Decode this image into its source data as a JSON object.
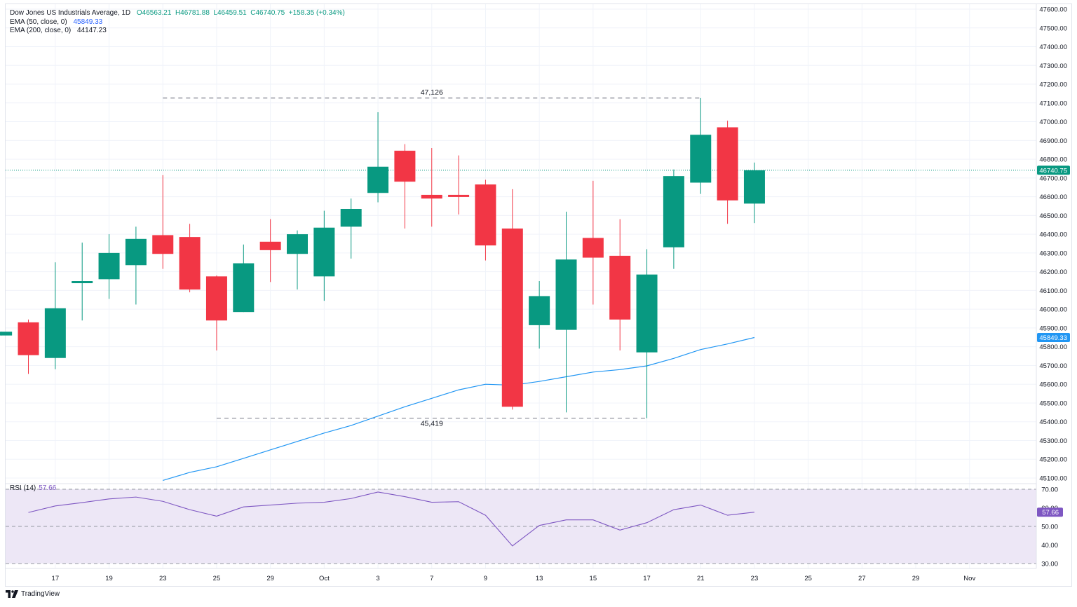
{
  "legend": {
    "symbol": "Dow Jones US Industrials Average, 1D",
    "ohlc": "O46563.21  H46781.88  L46459.51  C46740.75  +158.35 (+0.34%)",
    "ema50_label": "EMA (50, close, 0)",
    "ema50_value": "45849.33",
    "ema200_label": "EMA (200, close, 0)",
    "ema200_value": "44147.23"
  },
  "rsi_legend": {
    "label": "RSI (14)",
    "value": "57.66"
  },
  "branding": "TradingView",
  "colors": {
    "up": "#089981",
    "down": "#f23645",
    "ema50": "#2196f3",
    "rsi": "#7e57c2",
    "rsi_band": "#ede7f6",
    "grid": "#f0f3fa",
    "axis_text": "#131722"
  },
  "chart_data": [
    {
      "type": "candlestick",
      "y_axis_position": "right",
      "ylim": [
        45070,
        47625
      ],
      "y_ticks": [
        "47600.00",
        "47500.00",
        "47400.00",
        "47300.00",
        "47200.00",
        "47100.00",
        "47000.00",
        "46900.00",
        "46800.00",
        "46700.00",
        "46600.00",
        "46500.00",
        "46400.00",
        "46300.00",
        "46200.00",
        "46100.00",
        "46000.00",
        "45900.00",
        "45800.00",
        "45700.00",
        "45600.00",
        "45500.00",
        "45400.00",
        "45300.00",
        "45200.00",
        "45100.00"
      ],
      "x_ticks": [
        {
          "label": "17",
          "index": 1
        },
        {
          "label": "19",
          "index": 3
        },
        {
          "label": "23",
          "index": 5
        },
        {
          "label": "25",
          "index": 7
        },
        {
          "label": "29",
          "index": 9
        },
        {
          "label": "Oct",
          "index": 11
        },
        {
          "label": "3",
          "index": 13
        },
        {
          "label": "7",
          "index": 15
        },
        {
          "label": "9",
          "index": 17
        },
        {
          "label": "13",
          "index": 19
        },
        {
          "label": "15",
          "index": 21
        },
        {
          "label": "17",
          "index": 23
        },
        {
          "label": "21",
          "index": 25
        },
        {
          "label": "23",
          "index": 27
        },
        {
          "label": "25",
          "index": 29
        },
        {
          "label": "27",
          "index": 31
        },
        {
          "label": "29",
          "index": 33
        },
        {
          "label": "Nov",
          "index": 35
        }
      ],
      "candles": [
        {
          "i": -1,
          "o": 45860,
          "h": 45880,
          "l": 45860,
          "c": 45880
        },
        {
          "i": 0,
          "o": 45930,
          "h": 45945,
          "l": 45655,
          "c": 45755
        },
        {
          "i": 1,
          "o": 45740,
          "h": 46250,
          "l": 45680,
          "c": 46005
        },
        {
          "i": 2,
          "o": 46140,
          "h": 46355,
          "l": 45940,
          "c": 46150
        },
        {
          "i": 3,
          "o": 46160,
          "h": 46400,
          "l": 46055,
          "c": 46300
        },
        {
          "i": 4,
          "o": 46235,
          "h": 46440,
          "l": 46025,
          "c": 46375
        },
        {
          "i": 5,
          "o": 46395,
          "h": 46715,
          "l": 46215,
          "c": 46295
        },
        {
          "i": 6,
          "o": 46385,
          "h": 46455,
          "l": 46090,
          "c": 46105
        },
        {
          "i": 7,
          "o": 46175,
          "h": 46180,
          "l": 45780,
          "c": 45940
        },
        {
          "i": 8,
          "o": 45985,
          "h": 46345,
          "l": 45985,
          "c": 46245
        },
        {
          "i": 9,
          "o": 46360,
          "h": 46480,
          "l": 46145,
          "c": 46315
        },
        {
          "i": 10,
          "o": 46295,
          "h": 46420,
          "l": 46105,
          "c": 46400
        },
        {
          "i": 11,
          "o": 46175,
          "h": 46525,
          "l": 46045,
          "c": 46435
        },
        {
          "i": 12,
          "o": 46440,
          "h": 46590,
          "l": 46270,
          "c": 46535
        },
        {
          "i": 13,
          "o": 46620,
          "h": 47050,
          "l": 46570,
          "c": 46760
        },
        {
          "i": 14,
          "o": 46845,
          "h": 46880,
          "l": 46430,
          "c": 46680
        },
        {
          "i": 15,
          "o": 46610,
          "h": 46860,
          "l": 46440,
          "c": 46590
        },
        {
          "i": 16,
          "o": 46610,
          "h": 46820,
          "l": 46505,
          "c": 46605
        },
        {
          "i": 17,
          "o": 46665,
          "h": 46690,
          "l": 46260,
          "c": 46340
        },
        {
          "i": 18,
          "o": 46430,
          "h": 46640,
          "l": 45465,
          "c": 45480
        },
        {
          "i": 19,
          "o": 45915,
          "h": 46150,
          "l": 45790,
          "c": 46070
        },
        {
          "i": 20,
          "o": 45890,
          "h": 46520,
          "l": 45450,
          "c": 46265
        },
        {
          "i": 21,
          "o": 46380,
          "h": 46685,
          "l": 46025,
          "c": 46275
        },
        {
          "i": 22,
          "o": 46285,
          "h": 46480,
          "l": 45780,
          "c": 45945
        },
        {
          "i": 23,
          "o": 45770,
          "h": 46320,
          "l": 45419,
          "c": 46185
        },
        {
          "i": 24,
          "o": 46330,
          "h": 46745,
          "l": 46215,
          "c": 46710
        },
        {
          "i": 25,
          "o": 46675,
          "h": 47126,
          "l": 46615,
          "c": 46930
        },
        {
          "i": 26,
          "o": 46970,
          "h": 47005,
          "l": 46455,
          "c": 46580
        },
        {
          "i": 27,
          "o": 46563.21,
          "h": 46781.88,
          "l": 46459.51,
          "c": 46740.75
        }
      ],
      "ema50": [
        {
          "i": 5,
          "v": 45087
        },
        {
          "i": 6,
          "v": 45130
        },
        {
          "i": 7,
          "v": 45160
        },
        {
          "i": 8,
          "v": 45205
        },
        {
          "i": 9,
          "v": 45250
        },
        {
          "i": 10,
          "v": 45295
        },
        {
          "i": 11,
          "v": 45340
        },
        {
          "i": 12,
          "v": 45380
        },
        {
          "i": 13,
          "v": 45430
        },
        {
          "i": 14,
          "v": 45480
        },
        {
          "i": 15,
          "v": 45525
        },
        {
          "i": 16,
          "v": 45570
        },
        {
          "i": 17,
          "v": 45600
        },
        {
          "i": 18,
          "v": 45595
        },
        {
          "i": 19,
          "v": 45615
        },
        {
          "i": 20,
          "v": 45640
        },
        {
          "i": 21,
          "v": 45665
        },
        {
          "i": 22,
          "v": 45678
        },
        {
          "i": 23,
          "v": 45698
        },
        {
          "i": 24,
          "v": 45738
        },
        {
          "i": 25,
          "v": 45785
        },
        {
          "i": 26,
          "v": 45815
        },
        {
          "i": 27,
          "v": 45849.33
        }
      ],
      "annotations": [
        {
          "label": "47,126",
          "value": 47126,
          "from_index": 5,
          "to_index": 25,
          "placement": "above"
        },
        {
          "label": "45,419",
          "value": 45419,
          "from_index": 7,
          "to_index": 23,
          "placement": "below"
        }
      ],
      "price_tags": [
        {
          "text": "46740.75",
          "value": 46740.75,
          "color": "#089981"
        },
        {
          "text": "45849.33",
          "value": 45849.33,
          "color": "#2196f3"
        }
      ]
    },
    {
      "type": "line",
      "title": "RSI (14)",
      "ylim": [
        27,
        72
      ],
      "y_ticks": [
        "70.00",
        "60.00",
        "50.00",
        "40.00",
        "30.00"
      ],
      "bands": {
        "upper": 70,
        "middle": 50,
        "lower": 30
      },
      "series": [
        {
          "values": [
            {
              "i": 0,
              "v": 57.5
            },
            {
              "i": 1,
              "v": 61
            },
            {
              "i": 2,
              "v": 62.8
            },
            {
              "i": 3,
              "v": 64.8
            },
            {
              "i": 4,
              "v": 65.8
            },
            {
              "i": 5,
              "v": 63.5
            },
            {
              "i": 6,
              "v": 59
            },
            {
              "i": 7,
              "v": 55.5
            },
            {
              "i": 8,
              "v": 60.5
            },
            {
              "i": 9,
              "v": 61.5
            },
            {
              "i": 10,
              "v": 62.5
            },
            {
              "i": 11,
              "v": 63
            },
            {
              "i": 12,
              "v": 65
            },
            {
              "i": 13,
              "v": 68.5
            },
            {
              "i": 14,
              "v": 66
            },
            {
              "i": 15,
              "v": 63
            },
            {
              "i": 16,
              "v": 63.3
            },
            {
              "i": 17,
              "v": 56
            },
            {
              "i": 18,
              "v": 39.5
            },
            {
              "i": 19,
              "v": 50.5
            },
            {
              "i": 20,
              "v": 53.5
            },
            {
              "i": 21,
              "v": 53.5
            },
            {
              "i": 22,
              "v": 48
            },
            {
              "i": 23,
              "v": 52
            },
            {
              "i": 24,
              "v": 59
            },
            {
              "i": 25,
              "v": 61.5
            },
            {
              "i": 26,
              "v": 56
            },
            {
              "i": 27,
              "v": 57.66
            }
          ]
        }
      ],
      "price_tag": {
        "text": "57.66",
        "value": 57.66,
        "color": "#7e57c2"
      }
    }
  ]
}
